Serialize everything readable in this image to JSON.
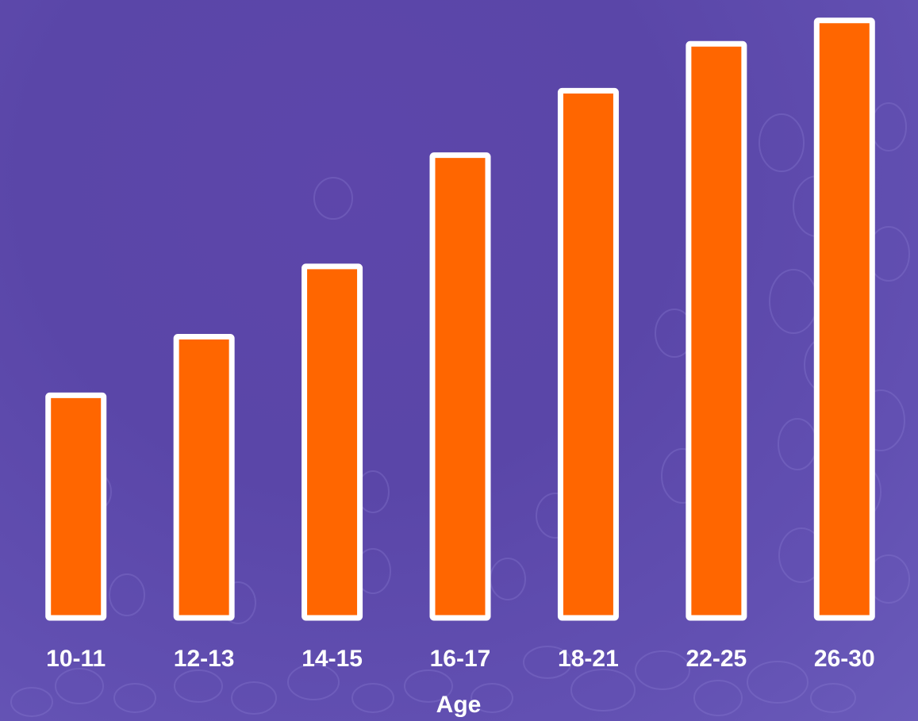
{
  "chart_data": {
    "type": "bar",
    "title": "",
    "xlabel": "Age",
    "ylabel": "",
    "categories": [
      "10-11",
      "12-13",
      "14-15",
      "16-17",
      "18-21",
      "22-25",
      "26-30"
    ],
    "values": [
      38,
      48,
      60,
      79,
      90,
      98,
      102
    ],
    "ylim": [
      0,
      104
    ],
    "grid": false,
    "legend": "none"
  },
  "colors": {
    "background": "#5b47a8",
    "bar_fill": "#ff6600",
    "bar_outline": "#ffffff",
    "text": "#ffffff",
    "pattern": "#8a7cd0"
  }
}
